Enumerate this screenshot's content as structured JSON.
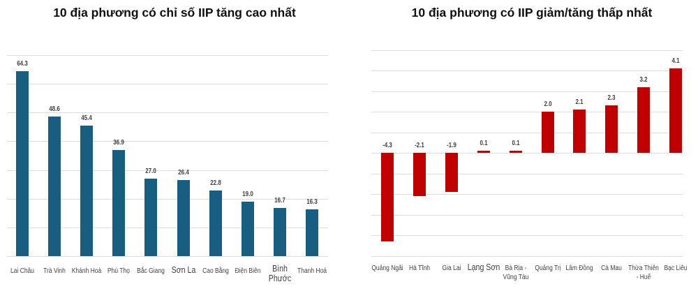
{
  "chart_data": [
    {
      "type": "bar",
      "title": "10 địa phương có chỉ số IIP tăng cao nhất",
      "categories": [
        "Lai Châu",
        "Trà Vinh",
        "Khánh Hoà",
        "Phú Thọ",
        "Bắc Giang",
        "Sơn La",
        "Cao Bằng",
        "Điện Biên",
        "Bình Phước",
        "Thanh Hoá"
      ],
      "values": [
        64.3,
        48.6,
        45.4,
        36.9,
        27.0,
        26.4,
        22.8,
        19.0,
        16.7,
        16.3
      ],
      "value_labels": [
        "64.3",
        "48.6",
        "45.4",
        "36.9",
        "27.0",
        "26.4",
        "22.8",
        "19.0",
        "16.7",
        "16.3"
      ],
      "xlabel": "",
      "ylabel": "",
      "ylim": [
        0,
        70
      ],
      "grid": true,
      "legend": "none",
      "color": "#175e80"
    },
    {
      "type": "bar",
      "title": "10 địa phương có IIP giảm/tăng thấp nhất",
      "categories": [
        "Quảng Ngãi",
        "Hà Tĩnh",
        "Gia Lai",
        "Lạng Sơn",
        "Bà Rịa - Vũng Tàu",
        "Quảng Trị",
        "Lâm Đồng",
        "Cà Mau",
        "Thừa Thiên - Huế",
        "Bạc Liêu"
      ],
      "values": [
        -4.3,
        -2.1,
        -1.9,
        0.1,
        0.1,
        2.0,
        2.1,
        2.3,
        3.2,
        4.1
      ],
      "value_labels": [
        "-4.3",
        "-2.1",
        "-1.9",
        "0.1",
        "0.1",
        "2.0",
        "2.1",
        "2.3",
        "3.2",
        "4.1"
      ],
      "xlabel": "",
      "ylabel": "",
      "ylim": [
        -5,
        5
      ],
      "grid": true,
      "legend": "none",
      "color": "#c00000"
    }
  ],
  "left": {
    "title": "10 địa phương có chỉ số IIP tăng cao nhất",
    "labels": [
      {
        "cat": "Lai Châu",
        "val": "64.3"
      },
      {
        "cat": "Trà Vinh",
        "val": "48.6"
      },
      {
        "cat": "Khánh Hoà",
        "val": "45.4"
      },
      {
        "cat": "Phú Thọ",
        "val": "36.9"
      },
      {
        "cat": "Bắc Giang",
        "val": "27.0"
      },
      {
        "cat": "Sơn La",
        "val": "26.4"
      },
      {
        "cat": "Cao Bằng",
        "val": "22.8"
      },
      {
        "cat": "Điện Biên",
        "val": "19.0"
      },
      {
        "cat_line1": "Bình",
        "cat_line2": "Phước",
        "val": "16.7"
      },
      {
        "cat": "Thanh Hoá",
        "val": "16.3"
      }
    ]
  },
  "right": {
    "title": "10 địa phương có IIP giảm/tăng thấp nhất",
    "labels": [
      {
        "cat": "Quảng Ngãi",
        "val": "-4.3"
      },
      {
        "cat": "Hà Tĩnh",
        "val": "-2.1"
      },
      {
        "cat": "Gia Lai",
        "val": "-1.9"
      },
      {
        "cat": "Lạng Sơn",
        "val": "0.1"
      },
      {
        "cat_line1": "Bà Rịa -",
        "cat_line2": "Vũng Tàu",
        "val": "0.1"
      },
      {
        "cat": "Quảng Trị",
        "val": "2.0"
      },
      {
        "cat": "Lâm Đồng",
        "val": "2.1"
      },
      {
        "cat": "Cà Mau",
        "val": "2.3"
      },
      {
        "cat_line1": "Thừa Thiên",
        "cat_line2": "- Huế",
        "val": "3.2"
      },
      {
        "cat": "Bạc Liêu",
        "val": "4.1"
      }
    ]
  }
}
